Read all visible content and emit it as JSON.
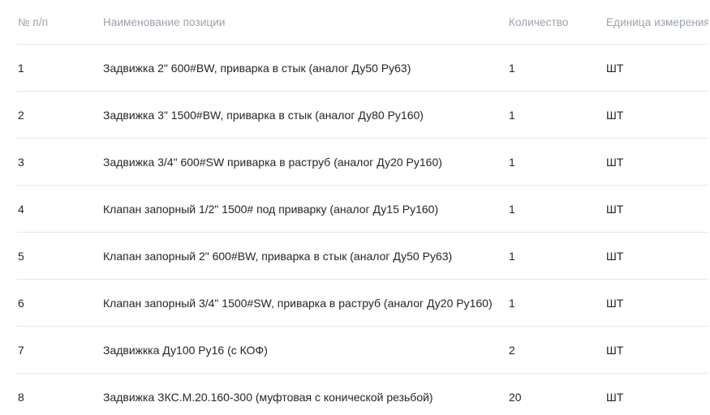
{
  "table": {
    "columns": [
      {
        "key": "num",
        "label": "№ п/п"
      },
      {
        "key": "name",
        "label": "Наименование позиции"
      },
      {
        "key": "qty",
        "label": "Количество"
      },
      {
        "key": "unit",
        "label": "Единица измерения"
      }
    ],
    "rows": [
      {
        "num": "1",
        "name": "Задвижка 2\" 600#BW, приварка в стык (аналог Ду50 Ру63)",
        "qty": "1",
        "unit": "ШТ"
      },
      {
        "num": "2",
        "name": "Задвижка 3\" 1500#BW, приварка в стык (аналог Ду80 Ру160)",
        "qty": "1",
        "unit": "ШТ"
      },
      {
        "num": "3",
        "name": "Задвижка 3/4\" 600#SW приварка в раструб (аналог Ду20 Ру160)",
        "qty": "1",
        "unit": "ШТ"
      },
      {
        "num": "4",
        "name": "Клапан запорный 1/2\" 1500# под приварку (аналог Ду15 Ру160)",
        "qty": "1",
        "unit": "ШТ"
      },
      {
        "num": "5",
        "name": "Клапан запорный 2\" 600#BW, приварка в стык (аналог Ду50 Ру63)",
        "qty": "1",
        "unit": "ШТ"
      },
      {
        "num": "6",
        "name": "Клапан запорный 3/4\" 1500#SW, приварка в раструб (аналог Ду20 Ру160)",
        "qty": "1",
        "unit": "ШТ"
      },
      {
        "num": "7",
        "name": "Задвижкка Ду100 Ру16 (с КОФ)",
        "qty": "2",
        "unit": "ШТ"
      },
      {
        "num": "8",
        "name": "Задвижка ЗКС.М.20.160-300 (муфтовая с конической резьбой)",
        "qty": "20",
        "unit": "ШТ"
      }
    ]
  },
  "colors": {
    "header_text": "#99a2ac",
    "body_text": "#262626",
    "divider": "#e3e7e9",
    "background": "#ffffff"
  }
}
